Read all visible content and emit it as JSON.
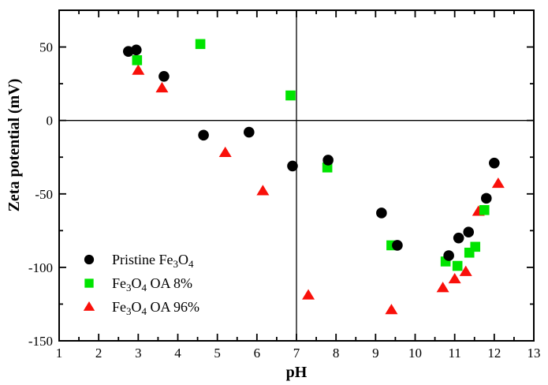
{
  "chart_data": {
    "type": "scatter",
    "title": "",
    "xlabel": "pH",
    "ylabel": "Zeta potential (mV)",
    "xlim": [
      1,
      13
    ],
    "ylim": [
      -150,
      75
    ],
    "x_major_ticks": [
      1,
      2,
      3,
      4,
      5,
      6,
      7,
      8,
      9,
      10,
      11,
      12,
      13
    ],
    "x_minor_step": 0.5,
    "y_major_ticks": [
      50,
      0,
      -50,
      -100,
      -150
    ],
    "y_minor_step": 25,
    "grid": false,
    "reference_lines": {
      "horizontal_y": 0,
      "vertical_x": 7
    },
    "legend_position": "lower-left",
    "series": [
      {
        "name": "Pristine Fe3O4",
        "marker": "circle",
        "color": "#000000",
        "label_parts": [
          {
            "t": "Pristine Fe"
          },
          {
            "t": "3",
            "sub": true
          },
          {
            "t": "O"
          },
          {
            "t": "4",
            "sub": true
          }
        ],
        "points": [
          [
            2.75,
            47
          ],
          [
            2.95,
            48
          ],
          [
            3.65,
            30
          ],
          [
            4.65,
            -10
          ],
          [
            5.8,
            -8
          ],
          [
            6.9,
            -31
          ],
          [
            7.8,
            -27
          ],
          [
            9.15,
            -63
          ],
          [
            9.55,
            -85
          ],
          [
            10.85,
            -92
          ],
          [
            11.1,
            -80
          ],
          [
            11.35,
            -76
          ],
          [
            11.8,
            -53
          ],
          [
            12.0,
            -29
          ]
        ]
      },
      {
        "name": "Fe3O4 OA 8%",
        "marker": "square",
        "color": "#00e400",
        "label_parts": [
          {
            "t": "Fe"
          },
          {
            "t": "3",
            "sub": true
          },
          {
            "t": "O"
          },
          {
            "t": "4",
            "sub": true
          },
          {
            "t": " OA 8%"
          }
        ],
        "points": [
          [
            2.97,
            41
          ],
          [
            4.57,
            52
          ],
          [
            6.85,
            17
          ],
          [
            7.78,
            -32
          ],
          [
            9.4,
            -85
          ],
          [
            10.77,
            -96
          ],
          [
            11.07,
            -99
          ],
          [
            11.37,
            -90
          ],
          [
            11.52,
            -86
          ],
          [
            11.75,
            -61
          ]
        ]
      },
      {
        "name": "Fe3O4 OA 96%",
        "marker": "triangle",
        "color": "#f9100a",
        "label_parts": [
          {
            "t": "Fe"
          },
          {
            "t": "3",
            "sub": true
          },
          {
            "t": "O"
          },
          {
            "t": "4",
            "sub": true
          },
          {
            "t": " OA 96%"
          }
        ],
        "points": [
          [
            3.0,
            34
          ],
          [
            3.6,
            22
          ],
          [
            5.2,
            -22
          ],
          [
            6.15,
            -48
          ],
          [
            7.3,
            -119
          ],
          [
            9.4,
            -129
          ],
          [
            10.7,
            -114
          ],
          [
            11.0,
            -108
          ],
          [
            11.28,
            -103
          ],
          [
            11.6,
            -62
          ],
          [
            12.1,
            -43
          ]
        ]
      }
    ]
  }
}
